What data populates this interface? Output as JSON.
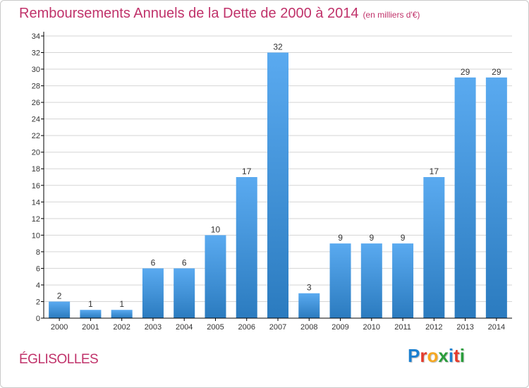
{
  "header": {
    "title": "Remboursements Annuels de la Dette de 2000 à 2014",
    "subtitle": "(en milliers d'€)"
  },
  "footer": {
    "commune": "ÉGLISOLLES",
    "logo_letters": [
      {
        "char": "P",
        "color": "#1a7fd0"
      },
      {
        "char": "r",
        "color": "#e53b2c"
      },
      {
        "char": "o",
        "color": "#f6a821"
      },
      {
        "char": "x",
        "color": "#2a9d3c"
      },
      {
        "char": "i",
        "color": "#1a7fd0"
      },
      {
        "char": "t",
        "color": "#e53b2c"
      },
      {
        "char": "i",
        "color": "#2a9d3c"
      }
    ]
  },
  "colors": {
    "bar_top": "#5aaaf0",
    "bar_bottom": "#2b7bbf",
    "axis": "#000000",
    "grid": "#d5d5d5",
    "title": "#c0326a"
  },
  "chart_data": {
    "type": "bar",
    "categories": [
      "2000",
      "2001",
      "2002",
      "2003",
      "2004",
      "2005",
      "2006",
      "2007",
      "2008",
      "2009",
      "2010",
      "2011",
      "2012",
      "2013",
      "2014"
    ],
    "values": [
      2,
      1,
      1,
      6,
      6,
      10,
      17,
      32,
      3,
      9,
      9,
      9,
      17,
      29,
      29
    ],
    "data_labels": [
      "2",
      "1",
      "1",
      "6",
      "6",
      "10",
      "17",
      "32",
      "3",
      "9",
      "9",
      "9",
      "17",
      "29",
      "29"
    ],
    "yticks": [
      0,
      2,
      4,
      6,
      8,
      10,
      12,
      14,
      16,
      18,
      20,
      22,
      24,
      26,
      28,
      30,
      32,
      34
    ],
    "ylim": [
      0,
      34
    ],
    "grid": true,
    "xlabel": "",
    "ylabel": ""
  }
}
